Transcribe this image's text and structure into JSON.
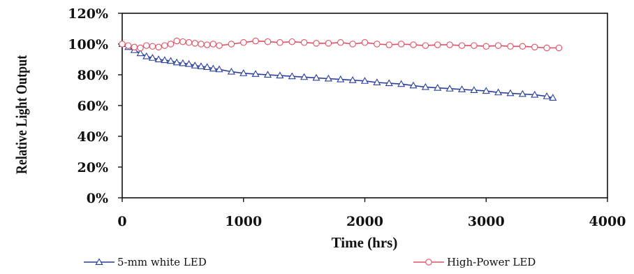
{
  "chart_data": {
    "type": "line",
    "title": "",
    "xlabel": "Time (hrs)",
    "ylabel": "Relative Light Output",
    "xlim": [
      0,
      4000
    ],
    "ylim": [
      0,
      120
    ],
    "x_ticks": [
      0,
      1000,
      2000,
      3000,
      4000
    ],
    "x_tick_labels": [
      "0",
      "1000",
      "2000",
      "3000",
      "4000"
    ],
    "y_ticks": [
      0,
      20,
      40,
      60,
      80,
      100,
      120
    ],
    "y_tick_labels": [
      "0%",
      "20%",
      "40%",
      "60%",
      "80%",
      "100%",
      "120%"
    ],
    "grid": false,
    "legend_position": "bottom",
    "series": [
      {
        "name": "5-mm white LED",
        "color": "#2a3f9a",
        "marker": "triangle-open",
        "x": [
          0,
          50,
          100,
          150,
          200,
          250,
          300,
          350,
          400,
          450,
          500,
          550,
          600,
          650,
          700,
          750,
          800,
          900,
          1000,
          1100,
          1200,
          1300,
          1400,
          1500,
          1600,
          1700,
          1800,
          1900,
          2000,
          2100,
          2200,
          2300,
          2400,
          2500,
          2600,
          2700,
          2800,
          2900,
          3000,
          3100,
          3200,
          3300,
          3400,
          3500,
          3550
        ],
        "values": [
          100,
          98,
          96,
          94,
          92,
          91,
          90,
          89.5,
          89,
          88,
          87.5,
          87,
          86,
          85.5,
          85,
          84,
          83.5,
          82,
          81,
          80.5,
          80,
          79.5,
          79,
          78.5,
          78,
          77.5,
          77,
          76.5,
          76,
          75,
          74.5,
          74,
          73,
          72,
          71.5,
          71,
          70.5,
          70,
          69.5,
          68.5,
          68,
          67.5,
          67,
          66,
          65
        ]
      },
      {
        "name": "High-Power LED",
        "color": "#e05060",
        "marker": "circle-open",
        "x": [
          0,
          50,
          100,
          150,
          200,
          250,
          300,
          350,
          400,
          450,
          500,
          550,
          600,
          650,
          700,
          750,
          800,
          900,
          1000,
          1100,
          1200,
          1300,
          1400,
          1500,
          1600,
          1700,
          1800,
          1900,
          2000,
          2100,
          2200,
          2300,
          2400,
          2500,
          2600,
          2700,
          2800,
          2900,
          3000,
          3100,
          3200,
          3300,
          3400,
          3500,
          3600
        ],
        "values": [
          100,
          99,
          98,
          97.5,
          99,
          98.5,
          98,
          99,
          100,
          102,
          101.5,
          101,
          100.5,
          100,
          99.5,
          100,
          99,
          100,
          101,
          102,
          101.5,
          101,
          101.5,
          101,
          100.5,
          100.5,
          101,
          100,
          101,
          100,
          99.5,
          100,
          99.5,
          99,
          99.5,
          99.5,
          99,
          99,
          98.5,
          99,
          98.5,
          98.5,
          98,
          97.5,
          97.5
        ]
      }
    ]
  }
}
